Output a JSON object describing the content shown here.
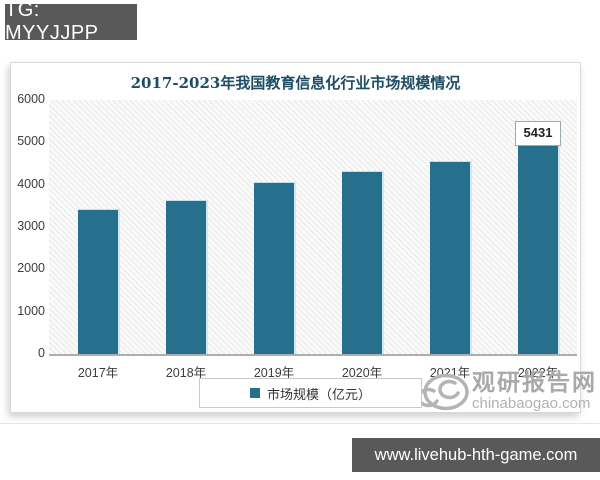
{
  "badge": {
    "label": "TG: MYYJJPP"
  },
  "chart_data": {
    "type": "bar",
    "title": "2017-2023年我国教育信息化行业市场规模情况",
    "categories": [
      "2017年",
      "2018年",
      "2019年",
      "2020年",
      "2021年",
      "2022年"
    ],
    "values": [
      3400,
      3610,
      4040,
      4300,
      4540,
      5431
    ],
    "bar_labels": [
      "",
      "",
      "",
      "",
      "",
      "5431"
    ],
    "legend": "市场规模（亿元）",
    "ylim": [
      0,
      6000
    ],
    "yticks": [
      0,
      1000,
      2000,
      3000,
      4000,
      5000,
      6000
    ],
    "bar_color": "#26708e",
    "grid": false,
    "legend_position": "bottom",
    "plot_background": "diagonal-hatch"
  },
  "watermark": {
    "logo": "swirl-logo",
    "site_name": "观研报告网",
    "site_url": "chinabaogao.com"
  },
  "footer": {
    "url": "www.livehub-hth-game.com"
  }
}
